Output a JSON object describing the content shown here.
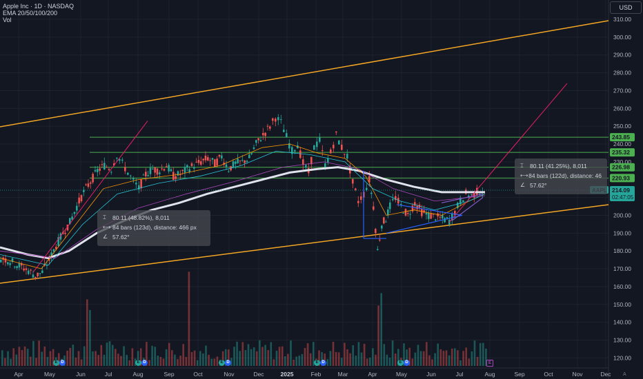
{
  "legend": {
    "symbol_line": "Apple Inc · 1D · NASDAQ",
    "ema_line": "EMA 20/50/100/200",
    "vol_line": "Vol"
  },
  "currency": "USD",
  "price_axis": {
    "ticks": [
      310,
      300,
      290,
      280,
      270,
      260,
      250,
      240,
      230,
      220,
      210,
      200,
      190,
      180,
      170,
      160,
      150,
      140,
      130,
      120
    ],
    "tick_labels": [
      "310.00",
      "300.00",
      "290.00",
      "280.00",
      "270.00",
      "260.00",
      "250.00",
      "240.00",
      "230.00",
      "220.00",
      "210.00",
      "200.00",
      "190.00",
      "180.00",
      "170.00",
      "160.00",
      "150.00",
      "140.00",
      "130.00",
      "120.00"
    ]
  },
  "time_axis": {
    "labels": [
      "Apr",
      "May",
      "Jun",
      "Jul",
      "Aug",
      "Sep",
      "Oct",
      "Nov",
      "Dec",
      "2025",
      "Feb",
      "Mar",
      "Apr",
      "May",
      "Jun",
      "Jul",
      "Aug",
      "Sep",
      "Oct",
      "Nov",
      "Dec"
    ]
  },
  "horizontal_levels": [
    {
      "value": 243.85,
      "label": "243.85"
    },
    {
      "value": 235.32,
      "label": "235.32"
    },
    {
      "value": 226.98,
      "label": "226.98"
    },
    {
      "value": 220.93,
      "label": "220.93"
    }
  ],
  "last_price": {
    "ticker": "AAPL",
    "price": "214.09",
    "countdown": "02:47:05"
  },
  "measure_left": {
    "change": "80.11 (48.82%), 8,011",
    "bars": "84 bars (123d), distance: 466 px",
    "angle": "57.62°"
  },
  "measure_right": {
    "change": "80.11 (41.25%), 8,011",
    "bars": "84 bars (122d), distance: 46",
    "angle": "57.62°"
  },
  "earnings_markers": {
    "e": "E",
    "d": "D",
    "next": "E"
  },
  "logo_text": "A",
  "colors": {
    "background": "#131722",
    "up": "#26a69a",
    "down": "#ef5350",
    "channel": "#f5a623",
    "levels": "#4caf50",
    "trend": "#e91e63",
    "triangle": "#2962ff",
    "ma200": "#e0e3eb"
  }
}
